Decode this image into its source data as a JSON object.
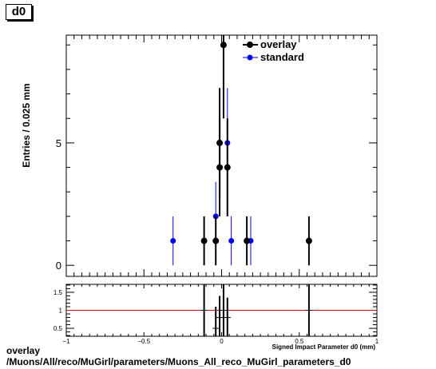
{
  "title": "d0",
  "footer": {
    "line1": "overlay",
    "line2": "/Muons/All/reco/MuGirl/parameters/Muons_All_reco_MuGirl_parameters_d0"
  },
  "chart_data": [
    {
      "type": "scatter",
      "ylabel": "Entries / 0.025 mm",
      "xlabel": "Signed Impact Parameter d0 (mm)",
      "xlim": [
        -1,
        1
      ],
      "ylim": [
        -0.45,
        9.4
      ],
      "yticks": [
        0,
        5
      ],
      "ytick_labels": [
        "0",
        "5"
      ],
      "legend": {
        "placement": "top-right",
        "entries": [
          "overlay",
          "standard"
        ]
      },
      "series": [
        {
          "name": "overlay",
          "color": "#000000",
          "points": [
            {
              "x": -0.1125,
              "y": 1,
              "err": 1
            },
            {
              "x": -0.0375,
              "y": 1,
              "err": 1
            },
            {
              "x": -0.0125,
              "y": 4,
              "err": 2
            },
            {
              "x": -0.0125,
              "y": 5,
              "err": 2.24
            },
            {
              "x": 0.0125,
              "y": 9,
              "err": 3
            },
            {
              "x": 0.0375,
              "y": 4,
              "err": 2
            },
            {
              "x": 0.1625,
              "y": 1,
              "err": 1
            },
            {
              "x": 0.5625,
              "y": 1,
              "err": 1
            }
          ]
        },
        {
          "name": "standard",
          "color": "#0000ee",
          "points": [
            {
              "x": -0.3125,
              "y": 1,
              "err": 1
            },
            {
              "x": -0.0375,
              "y": 2,
              "err": 1.41
            },
            {
              "x": -0.0125,
              "y": 5,
              "err": 2.24
            },
            {
              "x": 0.0375,
              "y": 5,
              "err": 2.24
            },
            {
              "x": 0.0625,
              "y": 1,
              "err": 1
            },
            {
              "x": 0.1875,
              "y": 1,
              "err": 1
            }
          ]
        }
      ]
    },
    {
      "type": "scatter",
      "xlim": [
        -1,
        1
      ],
      "ylim": [
        0.28,
        1.72
      ],
      "xticks": [
        -1,
        -0.5,
        0,
        0.5,
        1
      ],
      "xtick_labels": [
        "−1",
        "−0.5",
        "0",
        "0.5",
        "1"
      ],
      "yticks": [
        0.5,
        1,
        1.5
      ],
      "ytick_labels": [
        "0.5",
        "1",
        "1.5"
      ],
      "reference_line": {
        "y": 1,
        "color": "#cc0000"
      },
      "ratio_points": [
        {
          "x": -0.1125,
          "y": 1,
          "err": 1.8
        },
        {
          "x": -0.0375,
          "y": 0.5,
          "err": 0.6
        },
        {
          "x": -0.0125,
          "y": 0.8,
          "err": 0.6
        },
        {
          "x": 0.0125,
          "y": 1.0,
          "err": 1.0
        },
        {
          "x": 0.0375,
          "y": 0.8,
          "err": 0.55
        },
        {
          "x": 0.5625,
          "y": 1,
          "err": 1.8
        }
      ]
    }
  ]
}
